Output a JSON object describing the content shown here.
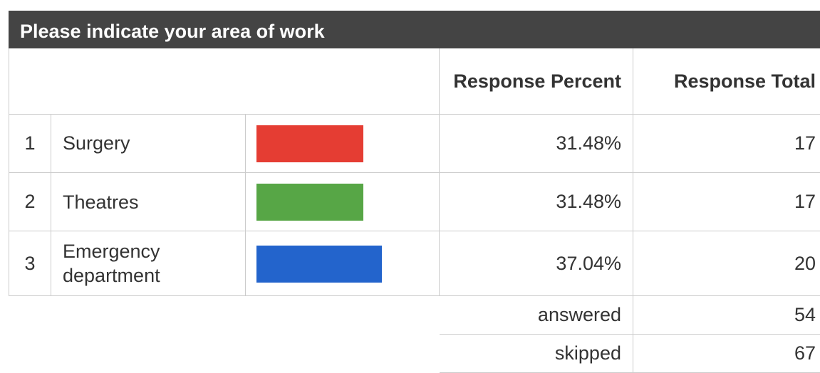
{
  "header": {
    "title": "Please indicate your area of work"
  },
  "table": {
    "columns": [
      "Response Percent",
      "Response Total"
    ],
    "rows": [
      {
        "index": "1",
        "label": "Surgery",
        "percent": 31.48,
        "percent_label": "31.48%",
        "total": 17,
        "color": "#e53d33"
      },
      {
        "index": "2",
        "label": "Theatres",
        "percent": 31.48,
        "percent_label": "31.48%",
        "total": 17,
        "color": "#57a646"
      },
      {
        "index": "3",
        "label": "Emergency department",
        "percent": 37.04,
        "percent_label": "37.04%",
        "total": 20,
        "color": "#2364cc"
      }
    ],
    "summary": [
      {
        "label": "answered",
        "value": 54
      },
      {
        "label": "skipped",
        "value": 67
      }
    ]
  }
}
